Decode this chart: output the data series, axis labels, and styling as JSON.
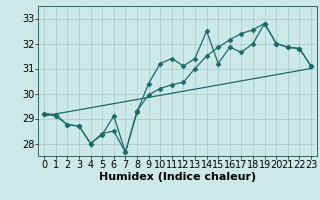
{
  "xlabel": "Humidex (Indice chaleur)",
  "bg_color": "#cce8e8",
  "line_color": "#1a6b6b",
  "x_ticks": [
    0,
    1,
    2,
    3,
    4,
    5,
    6,
    7,
    8,
    9,
    10,
    11,
    12,
    13,
    14,
    15,
    16,
    17,
    18,
    19,
    20,
    21,
    22,
    23
  ],
  "y_ticks": [
    28,
    29,
    30,
    31,
    32,
    33
  ],
  "ylim": [
    27.5,
    33.5
  ],
  "xlim": [
    -0.5,
    23.5
  ],
  "line1_y": [
    29.2,
    29.1,
    28.75,
    28.7,
    28.0,
    28.35,
    29.1,
    27.65,
    29.25,
    30.4,
    31.2,
    31.4,
    31.1,
    31.4,
    32.5,
    31.2,
    31.85,
    31.65,
    32.0,
    32.8,
    32.0,
    31.85,
    31.8,
    31.1
  ],
  "line2_y": [
    29.2,
    29.15,
    28.75,
    28.7,
    28.0,
    28.4,
    28.5,
    27.65,
    29.3,
    29.95,
    30.2,
    30.35,
    30.45,
    31.0,
    31.5,
    31.85,
    32.15,
    32.4,
    32.55,
    32.8,
    32.0,
    31.85,
    31.8,
    31.1
  ],
  "line3_x": [
    0,
    23
  ],
  "line3_y": [
    29.1,
    31.0
  ],
  "xlabel_fontsize": 8,
  "tick_fontsize": 7
}
